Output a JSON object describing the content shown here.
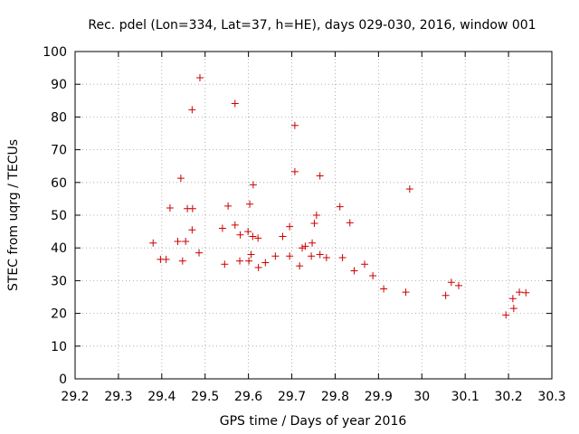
{
  "chart_data": {
    "type": "scatter",
    "title": "Rec. pdel (Lon=334, Lat=37, h=HE), days 029-030, 2016, window 001",
    "xlabel": "GPS time / Days of year 2016",
    "ylabel": "STEC from uqrg / TECUs",
    "xlim": [
      29.2,
      30.3
    ],
    "ylim": [
      0,
      100
    ],
    "x_ticks": [
      "29.2",
      "29.3",
      "29.4",
      "29.5",
      "29.6",
      "29.7",
      "29.8",
      "29.9",
      "30",
      "30.1",
      "30.2",
      "30.3"
    ],
    "x_tick_values": [
      29.2,
      29.3,
      29.4,
      29.5,
      29.6,
      29.7,
      29.8,
      29.9,
      30.0,
      30.1,
      30.2,
      30.3
    ],
    "y_ticks": [
      "0",
      "10",
      "20",
      "30",
      "40",
      "50",
      "60",
      "70",
      "80",
      "90",
      "100"
    ],
    "y_tick_values": [
      0,
      10,
      20,
      30,
      40,
      50,
      60,
      70,
      80,
      90,
      100
    ],
    "grid": true,
    "marker": "+",
    "color": "#cc0000",
    "series": [
      {
        "name": "STEC",
        "points": [
          [
            29.419,
            52.2
          ],
          [
            29.444,
            61.3
          ],
          [
            29.459,
            52.0
          ],
          [
            29.47,
            82.2
          ],
          [
            29.471,
            52.0
          ],
          [
            29.488,
            92.0
          ],
          [
            29.553,
            52.8
          ],
          [
            29.569,
            84.1
          ],
          [
            29.611,
            59.3
          ],
          [
            29.707,
            77.4
          ],
          [
            29.707,
            63.3
          ],
          [
            29.765,
            62.0
          ],
          [
            29.811,
            52.6
          ],
          [
            29.834,
            47.7
          ],
          [
            29.972,
            58.0
          ],
          [
            29.603,
            53.4
          ],
          [
            29.38,
            41.5
          ],
          [
            29.437,
            42.0
          ],
          [
            29.455,
            42.0
          ],
          [
            29.47,
            45.5
          ],
          [
            29.54,
            46.0
          ],
          [
            29.569,
            47.0
          ],
          [
            29.581,
            44.0
          ],
          [
            29.599,
            45.0
          ],
          [
            29.61,
            43.5
          ],
          [
            29.622,
            43.0
          ],
          [
            29.679,
            43.5
          ],
          [
            29.695,
            46.5
          ],
          [
            29.731,
            40.5
          ],
          [
            29.752,
            47.5
          ],
          [
            29.757,
            50.0
          ],
          [
            29.747,
            41.5
          ],
          [
            29.606,
            38.0
          ],
          [
            29.662,
            37.5
          ],
          [
            29.695,
            37.5
          ],
          [
            29.724,
            40.0
          ],
          [
            29.745,
            37.5
          ],
          [
            29.765,
            38.0
          ],
          [
            29.78,
            37.0
          ],
          [
            29.817,
            37.0
          ],
          [
            29.868,
            35.0
          ],
          [
            29.397,
            36.5
          ],
          [
            29.41,
            36.5
          ],
          [
            29.448,
            36.0
          ],
          [
            29.486,
            38.5
          ],
          [
            29.545,
            35.0
          ],
          [
            29.58,
            36.0
          ],
          [
            29.601,
            36.0
          ],
          [
            29.623,
            34.0
          ],
          [
            29.639,
            35.5
          ],
          [
            29.718,
            34.5
          ],
          [
            29.844,
            33.0
          ],
          [
            29.887,
            31.5
          ],
          [
            29.963,
            26.5
          ],
          [
            29.912,
            27.5
          ],
          [
            30.068,
            29.5
          ],
          [
            30.085,
            28.5
          ],
          [
            30.055,
            25.5
          ],
          [
            30.21,
            24.5
          ],
          [
            30.225,
            26.5
          ],
          [
            30.24,
            26.3
          ],
          [
            30.194,
            19.5
          ],
          [
            30.212,
            21.5
          ]
        ]
      }
    ]
  }
}
